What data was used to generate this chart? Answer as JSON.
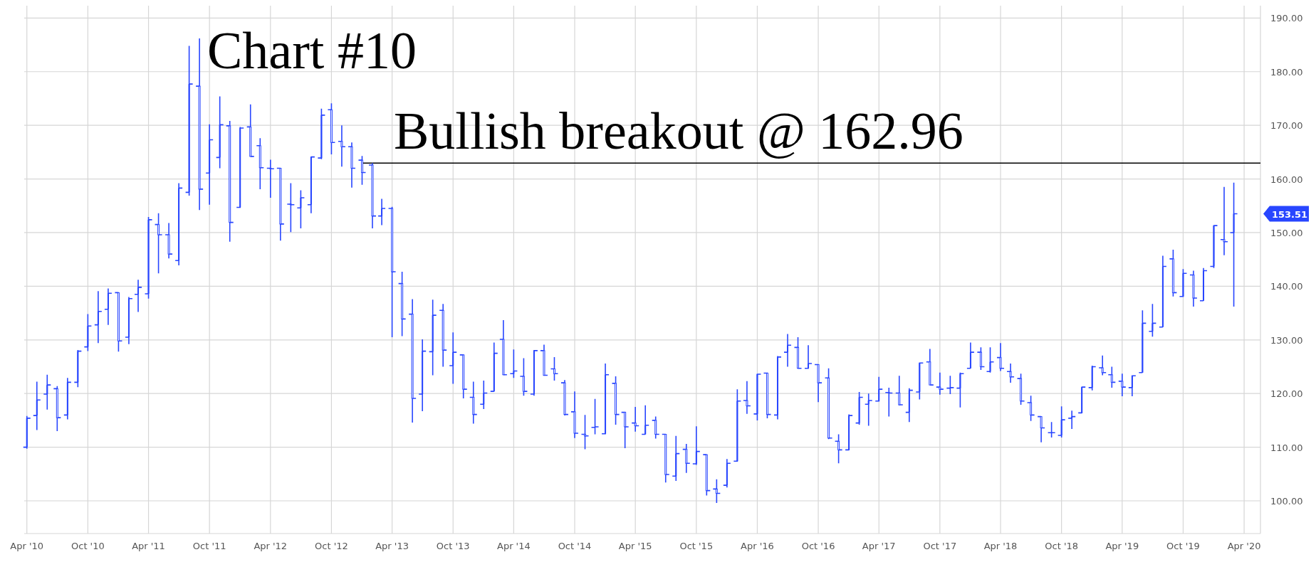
{
  "chart_data": {
    "type": "candlestick",
    "color": "#2846ff",
    "annotations": [
      "Chart #10",
      "153.51"
    ],
    "ref_lines": [
      {
        "axis": "y",
        "value": 162.96,
        "label": "Bullish breakout @ 162.96",
        "color": "#000000"
      }
    ],
    "xlim": [
      "2010-03-24",
      "2020-05-20"
    ],
    "xticks": [
      {
        "value": "2010-04",
        "label": "Apr '10"
      },
      {
        "value": "2010-10",
        "label": "Oct '10"
      },
      {
        "value": "2011-04",
        "label": "Apr '11"
      },
      {
        "value": "2011-10",
        "label": "Oct '11"
      },
      {
        "value": "2012-04",
        "label": "Apr '12"
      },
      {
        "value": "2012-10",
        "label": "Oct '12"
      },
      {
        "value": "2013-04",
        "label": "Apr '13"
      },
      {
        "value": "2013-10",
        "label": "Oct '13"
      },
      {
        "value": "2014-04",
        "label": "Apr '14"
      },
      {
        "value": "2014-10",
        "label": "Oct '14"
      },
      {
        "value": "2015-04",
        "label": "Apr '15"
      },
      {
        "value": "2015-10",
        "label": "Oct '15"
      },
      {
        "value": "2016-04",
        "label": "Apr '16"
      },
      {
        "value": "2016-10",
        "label": "Oct '16"
      },
      {
        "value": "2017-04",
        "label": "Apr '17"
      },
      {
        "value": "2017-10",
        "label": "Oct '17"
      },
      {
        "value": "2018-04",
        "label": "Apr '18"
      },
      {
        "value": "2018-10",
        "label": "Oct '18"
      },
      {
        "value": "2019-04",
        "label": "Apr '19"
      },
      {
        "value": "2019-10",
        "label": "Oct '19"
      },
      {
        "value": "2020-04",
        "label": "Apr '20"
      }
    ],
    "ylim": [
      93.9,
      192.3
    ],
    "yticks": [
      {
        "value": 100,
        "label": "100.00"
      },
      {
        "value": 110,
        "label": "110.00"
      },
      {
        "value": 120,
        "label": "120.00"
      },
      {
        "value": 130,
        "label": "130.00"
      },
      {
        "value": 140,
        "label": "140.00"
      },
      {
        "value": 150,
        "label": "150.00"
      },
      {
        "value": 160,
        "label": "160.00"
      },
      {
        "value": 170,
        "label": "170.00"
      },
      {
        "value": 180,
        "label": "180.00"
      },
      {
        "value": 190,
        "label": "190.00"
      }
    ],
    "grid": true,
    "x": [
      "2010-04",
      "2010-05",
      "2010-06",
      "2010-07",
      "2010-08",
      "2010-09",
      "2010-10",
      "2010-11",
      "2010-12",
      "2011-01",
      "2011-02",
      "2011-03",
      "2011-04",
      "2011-05",
      "2011-06",
      "2011-07",
      "2011-08",
      "2011-09",
      "2011-10",
      "2011-11",
      "2011-12",
      "2012-01",
      "2012-02",
      "2012-03",
      "2012-04",
      "2012-05",
      "2012-06",
      "2012-07",
      "2012-08",
      "2012-09",
      "2012-10",
      "2012-11",
      "2012-12",
      "2013-01",
      "2013-02",
      "2013-03",
      "2013-04",
      "2013-05",
      "2013-06",
      "2013-07",
      "2013-08",
      "2013-09",
      "2013-10",
      "2013-11",
      "2013-12",
      "2014-01",
      "2014-02",
      "2014-03",
      "2014-04",
      "2014-05",
      "2014-06",
      "2014-07",
      "2014-08",
      "2014-09",
      "2014-10",
      "2014-11",
      "2014-12",
      "2015-01",
      "2015-02",
      "2015-03",
      "2015-04",
      "2015-05",
      "2015-06",
      "2015-07",
      "2015-08",
      "2015-09",
      "2015-10",
      "2015-11",
      "2015-12",
      "2016-01",
      "2016-02",
      "2016-03",
      "2016-04",
      "2016-05",
      "2016-06",
      "2016-07",
      "2016-08",
      "2016-09",
      "2016-10",
      "2016-11",
      "2016-12",
      "2017-01",
      "2017-02",
      "2017-03",
      "2017-04",
      "2017-05",
      "2017-06",
      "2017-07",
      "2017-08",
      "2017-09",
      "2017-10",
      "2017-11",
      "2017-12",
      "2018-01",
      "2018-02",
      "2018-03",
      "2018-04",
      "2018-05",
      "2018-06",
      "2018-07",
      "2018-08",
      "2018-09",
      "2018-10",
      "2018-11",
      "2018-12",
      "2019-01",
      "2019-02",
      "2019-03",
      "2019-04",
      "2019-05",
      "2019-06",
      "2019-07",
      "2019-08",
      "2019-09",
      "2019-10",
      "2019-11",
      "2019-12",
      "2020-01",
      "2020-02",
      "2020-03"
    ],
    "ohlc": [
      [
        110.0,
        115.8,
        109.7,
        115.4
      ],
      [
        115.9,
        122.2,
        113.2,
        118.8
      ],
      [
        119.9,
        123.5,
        117.0,
        121.6
      ],
      [
        120.9,
        121.4,
        113.0,
        115.5
      ],
      [
        116.0,
        122.9,
        115.2,
        122.1
      ],
      [
        122.1,
        128.1,
        121.2,
        127.9
      ],
      [
        128.7,
        134.8,
        127.9,
        132.6
      ],
      [
        132.8,
        139.1,
        129.4,
        135.3
      ],
      [
        135.7,
        139.6,
        132.8,
        138.7
      ],
      [
        138.8,
        138.8,
        127.8,
        129.8
      ],
      [
        130.5,
        138.0,
        129.2,
        137.7
      ],
      [
        138.5,
        141.2,
        135.2,
        139.8
      ],
      [
        138.6,
        152.9,
        137.7,
        152.4
      ],
      [
        151.5,
        153.6,
        142.4,
        149.6
      ],
      [
        149.6,
        151.8,
        145.2,
        146.0
      ],
      [
        144.8,
        159.2,
        143.9,
        158.3
      ],
      [
        157.5,
        184.8,
        156.9,
        177.7
      ],
      [
        177.3,
        186.2,
        154.2,
        158.1
      ],
      [
        161.1,
        170.2,
        155.2,
        167.3
      ],
      [
        164.0,
        175.4,
        162.0,
        170.1
      ],
      [
        169.9,
        170.8,
        148.3,
        151.9
      ],
      [
        154.7,
        169.7,
        154.6,
        169.5
      ],
      [
        169.7,
        173.9,
        164.2,
        164.2
      ],
      [
        166.2,
        167.6,
        158.1,
        162.1
      ],
      [
        162.0,
        163.6,
        156.5,
        161.9
      ],
      [
        162.0,
        162.0,
        148.5,
        151.6
      ],
      [
        155.3,
        159.2,
        150.1,
        155.2
      ],
      [
        154.6,
        157.9,
        150.8,
        156.5
      ],
      [
        155.2,
        164.2,
        153.6,
        164.1
      ],
      [
        163.9,
        173.1,
        163.7,
        171.9
      ],
      [
        172.9,
        174.1,
        164.6,
        166.8
      ],
      [
        167.0,
        170.0,
        162.3,
        166.0
      ],
      [
        166.0,
        166.8,
        158.4,
        162.0
      ],
      [
        163.5,
        164.3,
        158.9,
        161.2
      ],
      [
        162.6,
        162.96,
        150.8,
        153.1
      ],
      [
        153.1,
        156.3,
        151.4,
        154.5
      ],
      [
        154.5,
        154.8,
        130.5,
        142.7
      ],
      [
        140.5,
        142.7,
        130.7,
        133.9
      ],
      [
        134.8,
        137.6,
        114.6,
        119.1
      ],
      [
        119.9,
        130.1,
        116.7,
        127.9
      ],
      [
        127.8,
        137.5,
        123.4,
        134.6
      ],
      [
        135.5,
        136.7,
        125.0,
        128.1
      ],
      [
        125.2,
        131.4,
        121.8,
        127.7
      ],
      [
        127.2,
        127.3,
        119.1,
        120.8
      ],
      [
        119.3,
        122.2,
        114.4,
        116.1
      ],
      [
        118.0,
        122.4,
        117.1,
        120.1
      ],
      [
        120.4,
        129.5,
        120.4,
        127.5
      ],
      [
        130.1,
        133.7,
        123.5,
        123.5
      ],
      [
        123.7,
        128.2,
        122.9,
        124.2
      ],
      [
        123.2,
        126.6,
        119.6,
        120.4
      ],
      [
        119.9,
        128.1,
        119.6,
        128.0
      ],
      [
        128.0,
        129.1,
        123.3,
        123.4
      ],
      [
        124.6,
        126.8,
        122.4,
        123.7
      ],
      [
        122.0,
        122.5,
        115.9,
        116.1
      ],
      [
        116.6,
        120.4,
        111.7,
        112.6
      ],
      [
        112.4,
        116.0,
        109.6,
        112.1
      ],
      [
        113.7,
        119.0,
        112.4,
        113.8
      ],
      [
        112.5,
        125.6,
        112.4,
        123.5
      ],
      [
        121.9,
        123.2,
        114.2,
        116.1
      ],
      [
        116.5,
        116.6,
        109.8,
        113.8
      ],
      [
        114.5,
        117.5,
        112.9,
        114.0
      ],
      [
        112.4,
        117.8,
        112.4,
        114.1
      ],
      [
        115.0,
        115.7,
        111.6,
        112.4
      ],
      [
        112.4,
        112.4,
        103.4,
        104.9
      ],
      [
        104.6,
        112.1,
        103.7,
        108.8
      ],
      [
        109.6,
        110.6,
        105.2,
        107.0
      ],
      [
        106.9,
        113.9,
        106.7,
        109.2
      ],
      [
        108.6,
        108.6,
        101.0,
        101.9
      ],
      [
        102.2,
        104.0,
        99.6,
        101.4
      ],
      [
        102.9,
        107.8,
        102.5,
        107.0
      ],
      [
        107.4,
        120.8,
        107.3,
        118.6
      ],
      [
        118.7,
        122.3,
        116.2,
        117.7
      ],
      [
        116.2,
        123.7,
        115.0,
        123.6
      ],
      [
        123.8,
        123.9,
        115.4,
        116.1
      ],
      [
        116.0,
        127.0,
        115.2,
        126.8
      ],
      [
        127.7,
        131.1,
        125.0,
        129.0
      ],
      [
        128.6,
        130.5,
        124.7,
        124.7
      ],
      [
        124.7,
        129.0,
        124.6,
        125.6
      ],
      [
        125.4,
        125.4,
        118.4,
        122.0
      ],
      [
        122.9,
        124.7,
        111.5,
        111.7
      ],
      [
        111.1,
        112.4,
        107.0,
        109.5
      ],
      [
        109.5,
        116.1,
        109.4,
        115.9
      ],
      [
        114.5,
        120.3,
        114.2,
        119.3
      ],
      [
        118.0,
        120.0,
        114.0,
        118.7
      ],
      [
        118.6,
        123.1,
        118.5,
        120.8
      ],
      [
        120.2,
        121.1,
        115.7,
        120.1
      ],
      [
        120.1,
        123.3,
        117.8,
        117.9
      ],
      [
        116.5,
        121.0,
        114.7,
        120.6
      ],
      [
        120.3,
        125.8,
        118.9,
        125.7
      ],
      [
        125.9,
        128.3,
        121.6,
        121.6
      ],
      [
        121.2,
        123.9,
        119.8,
        120.8
      ],
      [
        121.0,
        123.3,
        119.9,
        121.1
      ],
      [
        121.0,
        123.9,
        117.4,
        123.7
      ],
      [
        124.7,
        129.5,
        124.7,
        127.7
      ],
      [
        127.7,
        128.6,
        124.4,
        125.0
      ],
      [
        124.1,
        128.6,
        123.9,
        125.9
      ],
      [
        126.7,
        129.4,
        124.2,
        124.7
      ],
      [
        124.1,
        125.6,
        122.0,
        123.1
      ],
      [
        122.8,
        123.7,
        117.9,
        118.6
      ],
      [
        118.3,
        119.6,
        114.9,
        116.0
      ],
      [
        115.7,
        115.7,
        110.9,
        113.6
      ],
      [
        112.7,
        114.7,
        111.8,
        112.7
      ],
      [
        112.2,
        117.6,
        111.8,
        115.1
      ],
      [
        115.4,
        116.8,
        113.4,
        115.7
      ],
      [
        116.4,
        121.3,
        116.3,
        121.2
      ],
      [
        121.1,
        125.2,
        120.6,
        125.0
      ],
      [
        124.8,
        127.1,
        123.4,
        123.9
      ],
      [
        123.5,
        125.0,
        121.1,
        122.1
      ],
      [
        122.3,
        123.7,
        119.5,
        121.2
      ],
      [
        121.1,
        123.4,
        119.5,
        123.3
      ],
      [
        123.9,
        135.5,
        123.9,
        133.1
      ],
      [
        131.6,
        136.7,
        130.6,
        133.1
      ],
      [
        132.4,
        145.7,
        132.4,
        143.7
      ],
      [
        145.1,
        146.8,
        138.1,
        138.8
      ],
      [
        138.1,
        143.2,
        138.0,
        142.4
      ],
      [
        142.1,
        142.9,
        136.2,
        137.8
      ],
      [
        137.3,
        143.4,
        137.3,
        142.9
      ],
      [
        143.7,
        151.4,
        143.4,
        151.3
      ],
      [
        148.7,
        158.5,
        145.8,
        148.3
      ],
      [
        150.0,
        159.3,
        136.2,
        153.51
      ]
    ]
  }
}
